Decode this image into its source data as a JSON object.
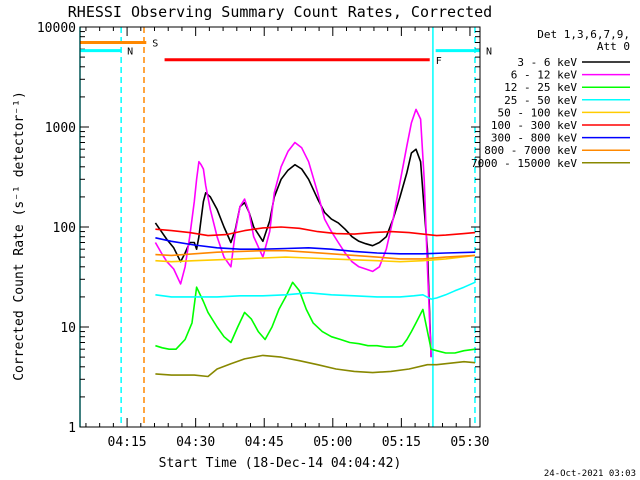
{
  "chart_data": {
    "type": "line",
    "title": "RHESSI Observing Summary Count Rates, Corrected",
    "xlabel": "Start Time (18-Dec-14 04:04:42)",
    "ylabel": "Corrected Count Rate (s⁻¹ detector⁻¹)",
    "yscale": "log",
    "ylim": [
      1,
      10000
    ],
    "y_ticks": [
      1,
      10,
      100,
      1000,
      10000
    ],
    "y_tick_labels": [
      "1",
      "10",
      "100",
      "1000",
      "10000"
    ],
    "x_unit": "minutes after 04:04:42",
    "xlim": [
      0,
      87.5
    ],
    "x_ticks": [
      10.3,
      25.3,
      40.3,
      55.3,
      70.3,
      85.3
    ],
    "x_tick_labels": [
      "04:15",
      "04:30",
      "04:45",
      "05:00",
      "05:15",
      "05:30"
    ],
    "legend": {
      "detectors": "Det 1,3,6,7,9,",
      "attenuator": "Att 0",
      "placement": "right"
    },
    "footer_date": "24-Oct-2021 03:03",
    "series": [
      {
        "name": "3 - 6 keV",
        "color": "#000000",
        "x": [
          16.5,
          17.8,
          19,
          20.5,
          22,
          23,
          24,
          25,
          25.5,
          26,
          26.5,
          27,
          27.5,
          28.5,
          30,
          31.5,
          33,
          34,
          35,
          36,
          37,
          38,
          40,
          41.5,
          42.5,
          44,
          45.5,
          47,
          48.5,
          50,
          52,
          53.5,
          55,
          56.5,
          58,
          59.5,
          61,
          62.5,
          64,
          65.5,
          67,
          68.5,
          70,
          71.5,
          72.5,
          73.5,
          74.5,
          75.3,
          76,
          76.8
        ],
        "y": [
          110,
          90,
          75,
          62,
          45,
          55,
          70,
          70,
          60,
          80,
          120,
          180,
          220,
          200,
          150,
          100,
          70,
          95,
          160,
          175,
          140,
          100,
          72,
          115,
          200,
          300,
          370,
          420,
          380,
          300,
          190,
          140,
          120,
          110,
          95,
          80,
          72,
          68,
          65,
          70,
          80,
          120,
          200,
          350,
          550,
          600,
          450,
          150,
          60,
          5
        ]
      },
      {
        "name": "6 - 12 keV",
        "color": "#ff00ff",
        "x": [
          16.5,
          17.8,
          19,
          20.5,
          22,
          23,
          24,
          25,
          25.5,
          26,
          26.5,
          27,
          27.5,
          28.5,
          30,
          31.5,
          33,
          34,
          35,
          36,
          37,
          38,
          40,
          41.5,
          42.5,
          44,
          45.5,
          47,
          48.5,
          50,
          52,
          53.5,
          55,
          56.5,
          58,
          59.5,
          61,
          62.5,
          64,
          65.5,
          67,
          68.5,
          70,
          71.5,
          72.5,
          73.5,
          74.5,
          75.3,
          76,
          76.8
        ],
        "y": [
          70,
          55,
          45,
          38,
          27,
          40,
          80,
          180,
          300,
          450,
          420,
          380,
          260,
          150,
          80,
          50,
          40,
          90,
          160,
          190,
          140,
          80,
          50,
          90,
          220,
          400,
          570,
          700,
          620,
          450,
          220,
          120,
          90,
          70,
          55,
          45,
          40,
          38,
          36,
          40,
          60,
          120,
          280,
          650,
          1100,
          1500,
          1200,
          300,
          40,
          5
        ]
      },
      {
        "name": "12 - 25 keV",
        "color": "#00ff00",
        "x": [
          16.5,
          18,
          19.5,
          21,
          23,
          24.5,
          25.5,
          27,
          28,
          30,
          31.5,
          33,
          34.5,
          36,
          37.5,
          39,
          40.5,
          42,
          43.5,
          45,
          46.5,
          48,
          49.5,
          51,
          53,
          55,
          57,
          59,
          61,
          63,
          65,
          67,
          69,
          70.5,
          71.5,
          72.5,
          73.5,
          75,
          76.8,
          78,
          80,
          82,
          84,
          86.4
        ],
        "y": [
          6.5,
          6.2,
          6,
          6,
          7.5,
          11,
          25,
          18,
          14,
          10,
          8,
          7,
          10,
          14,
          12,
          9,
          7.5,
          10,
          15,
          20,
          28,
          23,
          15,
          11,
          9,
          8,
          7.5,
          7,
          6.8,
          6.5,
          6.5,
          6.3,
          6.3,
          6.5,
          7.5,
          9,
          11,
          15,
          6,
          5.8,
          5.5,
          5.5,
          5.8,
          6
        ]
      },
      {
        "name": "25 - 50 keV",
        "color": "#00ffff",
        "x": [
          16.5,
          20,
          25,
          30,
          35,
          40,
          45,
          50,
          55,
          60,
          65,
          70,
          73,
          75,
          76.8,
          78,
          80,
          82,
          84,
          86.4
        ],
        "y": [
          21,
          20,
          20,
          20,
          20.5,
          20.5,
          21,
          22,
          21,
          20.5,
          20,
          20,
          20.5,
          21,
          19,
          19.5,
          21,
          23,
          25,
          28
        ]
      },
      {
        "name": "50 - 100 keV",
        "color": "#ffcc00",
        "x": [
          16.5,
          20,
          25,
          30,
          35,
          40,
          45,
          50,
          55,
          60,
          65,
          70,
          75,
          80,
          86.4
        ],
        "y": [
          46,
          45,
          46,
          47,
          48,
          49,
          50,
          49,
          48,
          47,
          46,
          45,
          46,
          48,
          52
        ]
      },
      {
        "name": "100 - 300 keV",
        "color": "#ff0000",
        "x": [
          16.5,
          20,
          24,
          28,
          32,
          36,
          40,
          44,
          48,
          52,
          56,
          60,
          64,
          68,
          72,
          76,
          78,
          80,
          84,
          86.4
        ],
        "y": [
          95,
          92,
          88,
          82,
          84,
          92,
          98,
          100,
          97,
          90,
          86,
          85,
          88,
          90,
          88,
          84,
          82,
          83,
          86,
          88
        ]
      },
      {
        "name": "300 - 800 keV",
        "color": "#0000ff",
        "x": [
          16.5,
          20,
          25,
          30,
          35,
          40,
          45,
          50,
          55,
          60,
          65,
          70,
          75,
          80,
          86.4
        ],
        "y": [
          78,
          72,
          66,
          62,
          60,
          60,
          61,
          62,
          60,
          57,
          55,
          54,
          54,
          55,
          56
        ]
      },
      {
        "name": "800 - 7000 keV",
        "color": "#ff8800",
        "x": [
          16.5,
          20,
          25,
          30,
          35,
          40,
          45,
          50,
          55,
          60,
          65,
          70,
          75,
          80,
          86.4
        ],
        "y": [
          53,
          52,
          54,
          56,
          57,
          58,
          58,
          56,
          54,
          52,
          50,
          48,
          48,
          50,
          52
        ]
      },
      {
        "name": "7000 - 15000 keV",
        "color": "#888800",
        "x": [
          16.5,
          20,
          25,
          28,
          30,
          33,
          36,
          40,
          44,
          48,
          52,
          56,
          60,
          64,
          68,
          72,
          76,
          78,
          80,
          84,
          86.4
        ],
        "y": [
          3.4,
          3.3,
          3.3,
          3.2,
          3.8,
          4.3,
          4.8,
          5.2,
          5,
          4.6,
          4.2,
          3.8,
          3.6,
          3.5,
          3.6,
          3.8,
          4.2,
          4.2,
          4.3,
          4.5,
          4.4
        ]
      }
    ],
    "markers": [
      {
        "label": "S",
        "color": "#ff8800",
        "x_start": 0,
        "x_end": 14.5,
        "y": 7000
      },
      {
        "label": "N",
        "color": "#00ffff",
        "x_start": 0,
        "x_end": 9,
        "y": 5800
      },
      {
        "label": "N",
        "color": "#00ffff",
        "x_start": 77.8,
        "x_end": 87.5,
        "y": 5800
      },
      {
        "label": "F",
        "color": "#ff0000",
        "x_start": 18.5,
        "x_end": 76.5,
        "y": 4700
      }
    ],
    "vertical_lines": [
      {
        "x": 0,
        "color": "#00ffff",
        "style": "solid"
      },
      {
        "x": 9,
        "color": "#00ffff",
        "style": "dashed"
      },
      {
        "x": 14,
        "color": "#ff8800",
        "style": "dashed"
      },
      {
        "x": 77.2,
        "color": "#00ffff",
        "style": "solid"
      },
      {
        "x": 86.4,
        "color": "#00ffff",
        "style": "dashed"
      }
    ]
  }
}
